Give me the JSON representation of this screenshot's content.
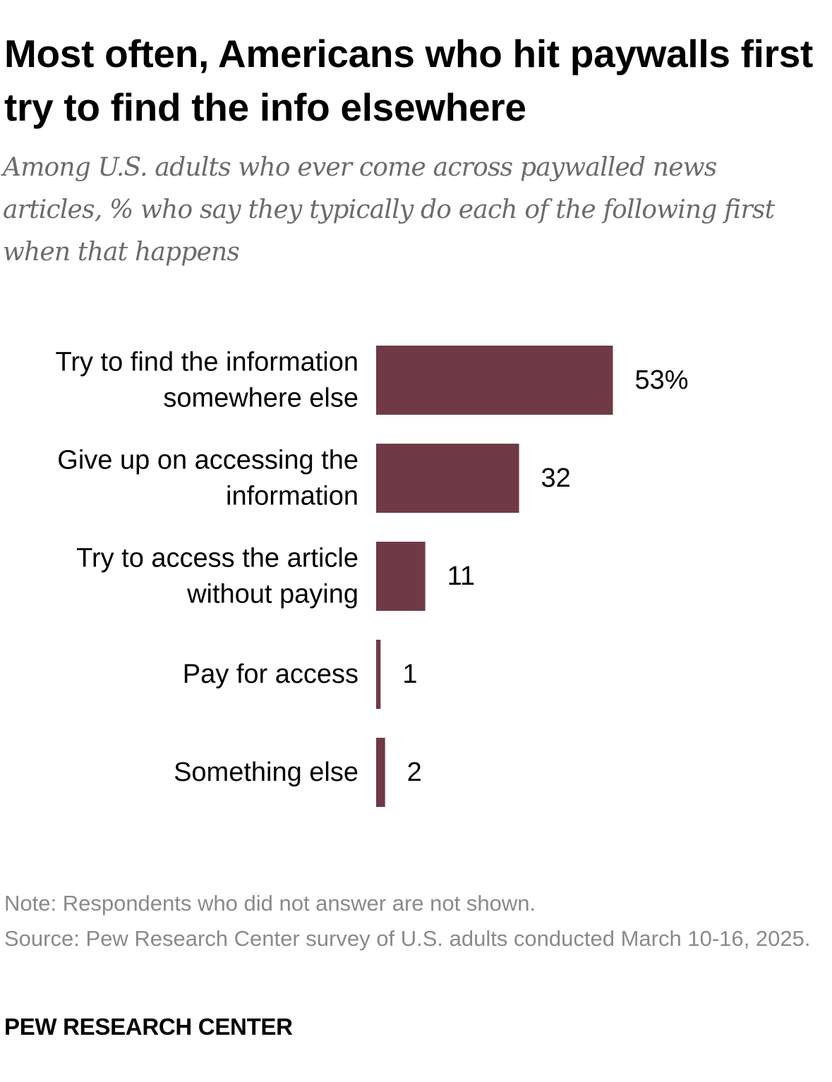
{
  "title": "Most often, Americans who hit paywalls first try to find the info elsewhere",
  "subtitle": "Among U.S. adults who ever come across paywalled news articles, % who say they typically do each of the following first when that happens",
  "note": "Note: Respondents who did not answer are not shown.",
  "source": "Source: Pew Research Center survey of U.S. adults conducted March 10-16, 2025.",
  "brand": "PEW RESEARCH CENTER",
  "colors": {
    "bar": "#6f3a45"
  },
  "chart_data": {
    "type": "bar",
    "orientation": "horizontal",
    "categories": [
      [
        "Try to find the information",
        "somewhere else"
      ],
      [
        "Give up on accessing the",
        "information"
      ],
      [
        "Try to access the article",
        "without paying"
      ],
      [
        "Pay for access"
      ],
      [
        "Something else"
      ]
    ],
    "values": [
      53,
      32,
      11,
      1,
      2
    ],
    "data_labels": [
      "53%",
      "32",
      "11",
      "1",
      "2"
    ],
    "unit": "%",
    "grid": false,
    "legend": "none"
  }
}
